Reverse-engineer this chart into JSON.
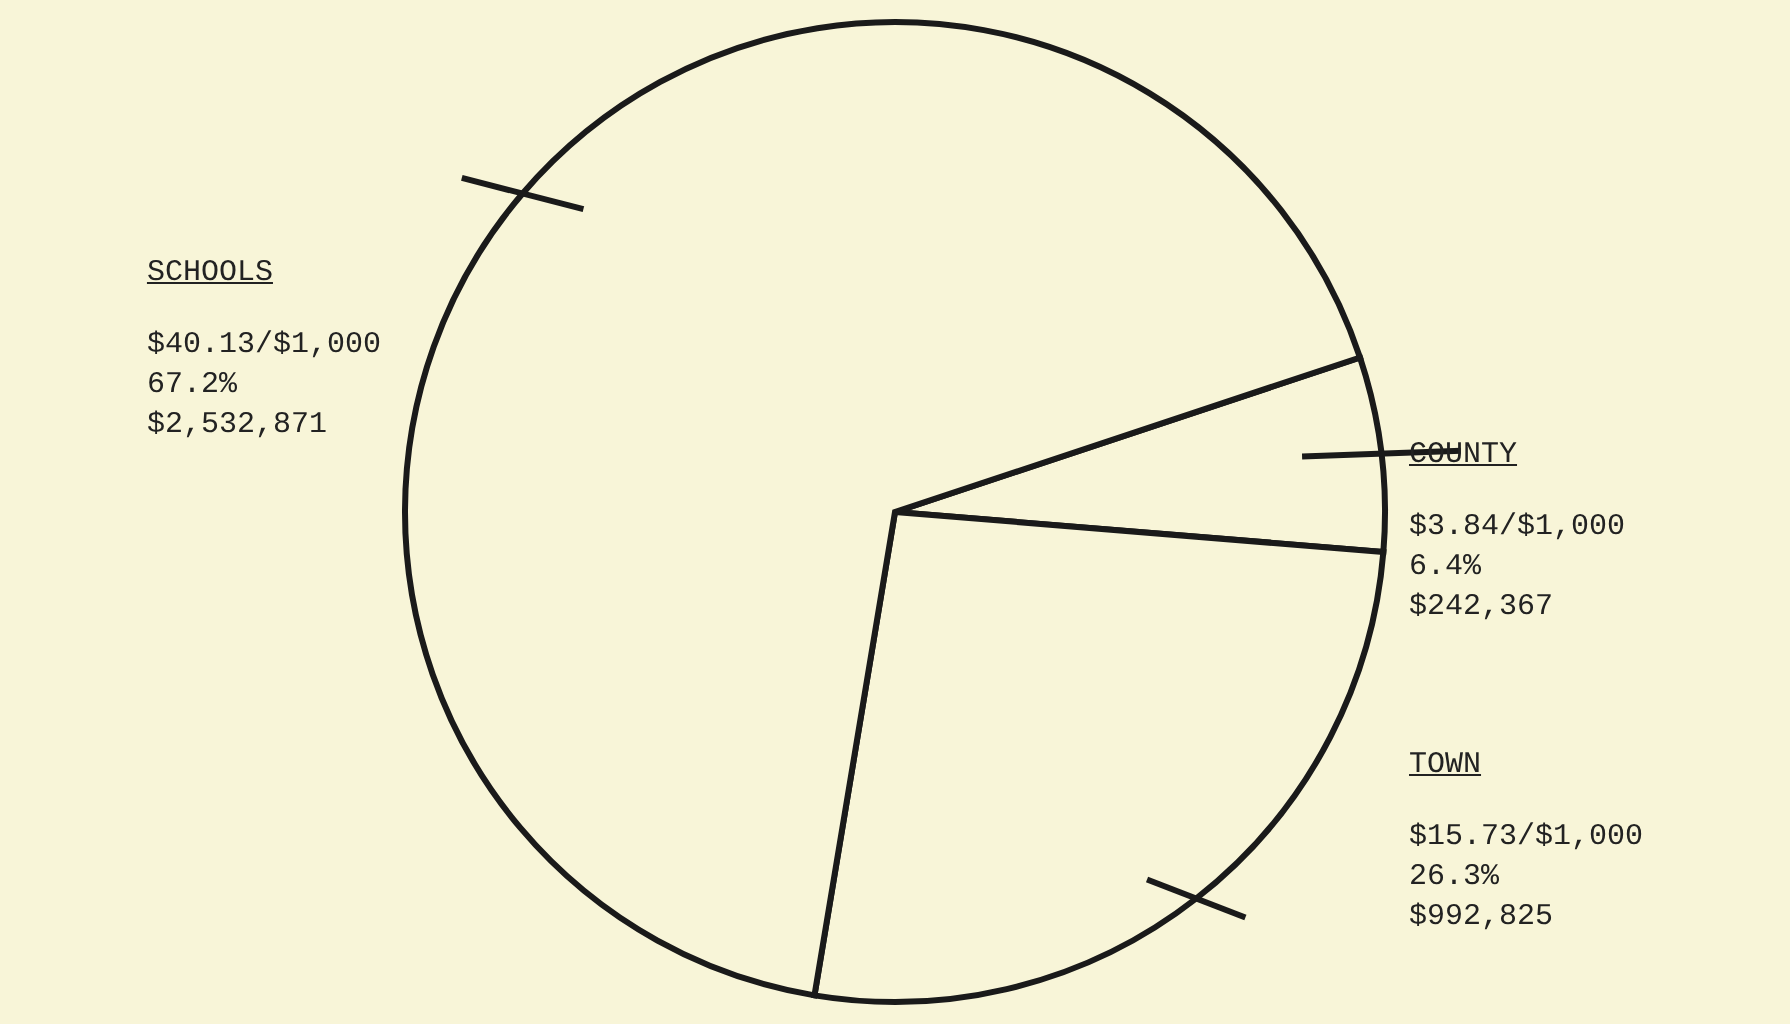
{
  "chart_data": {
    "type": "pie",
    "categories": [
      "COUNTY",
      "TOWN",
      "SCHOOLS"
    ],
    "values": [
      6.4,
      26.3,
      67.2
    ],
    "colors": [
      "#f8f5d8",
      "#f8f5d8",
      "#f8f5d8"
    ],
    "value_labels": [
      "$3.84/$1,000\n6.4%\n$242,367",
      "$15.73/$1,000\n26.3%\n$992,825",
      "$40.13/$1,000\n67.2%\n$2,532,871"
    ]
  }
}
